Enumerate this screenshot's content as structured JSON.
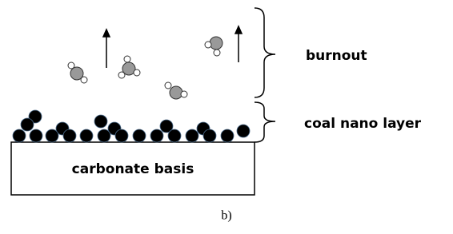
{
  "labels": {
    "burnout": "burnout",
    "layer": "coal nano layer",
    "basis": "carbonate basis",
    "caption": "b)"
  }
}
